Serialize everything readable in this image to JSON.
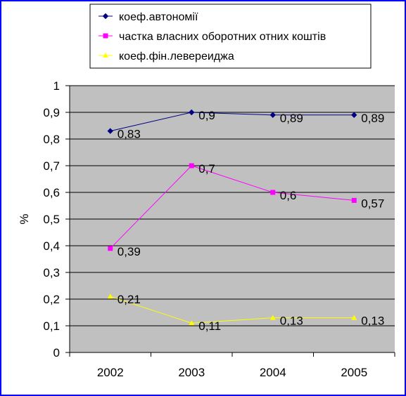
{
  "chart_data": {
    "type": "line",
    "categories": [
      "2002",
      "2003",
      "2004",
      "2005"
    ],
    "ylabel": "%",
    "xlabel": "",
    "ylim": [
      0,
      1
    ],
    "yticks": [
      "0",
      "0,1",
      "0,2",
      "0,3",
      "0,4",
      "0,5",
      "0,6",
      "0,7",
      "0,8",
      "0,9",
      "1"
    ],
    "grid": true,
    "legend_position": "top",
    "plot_background": "#c0c0c0",
    "series": [
      {
        "name": "коеф.автономії",
        "values": [
          0.83,
          0.9,
          0.89,
          0.89
        ],
        "labels": [
          "0,83",
          "0,9",
          "0,89",
          "0,89"
        ],
        "color": "#000080",
        "marker": "diamond"
      },
      {
        "name": "частка власних оборотних отних коштів",
        "values": [
          0.39,
          0.7,
          0.6,
          0.57
        ],
        "labels": [
          "0,39",
          "0,7",
          "0,6",
          "0,57"
        ],
        "color": "#ff00ff",
        "marker": "square"
      },
      {
        "name": "коеф.фін.левереиджа",
        "values": [
          0.21,
          0.11,
          0.13,
          0.13
        ],
        "labels": [
          "0,21",
          "0,11",
          "0,13",
          "0,13"
        ],
        "color": "#ffff00",
        "marker": "triangle"
      }
    ]
  }
}
